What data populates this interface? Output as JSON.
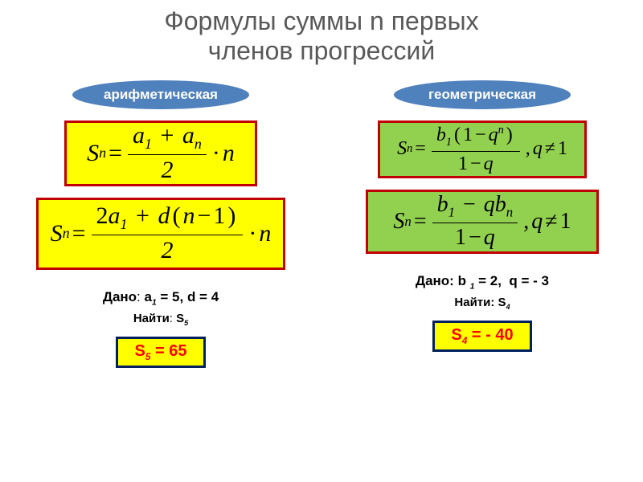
{
  "title_line1": "Формулы суммы n первых",
  "title_line2": "членов прогрессий",
  "colors": {
    "pill_bg": "#4f81bd",
    "pill_text": "#ffffff",
    "formula_border": "#c00000",
    "yellow_bg": "#ffff00",
    "green_bg": "#92d050",
    "answer_border": "#002060",
    "answer_text": "#ff0000",
    "title_color": "#595959"
  },
  "arithmetic": {
    "label": "арифметическая",
    "formula1": {
      "lhs_base": "S",
      "lhs_sub": "n",
      "num_a1_base": "a",
      "num_a1_sub": "1",
      "num_an_base": "a",
      "num_an_sub": "n",
      "den": "2",
      "tail_base": "n"
    },
    "formula2": {
      "lhs_base": "S",
      "lhs_sub": "n",
      "num_coef": "2",
      "num_a1_base": "a",
      "num_a1_sub": "1",
      "num_d": "d",
      "num_nminus": "n",
      "num_minus1": "1",
      "den": "2",
      "tail_base": "n"
    },
    "given_prefix": "Дано",
    "given_a1_base": "a",
    "given_a1_sub": "1",
    "given_a1_val": "5",
    "given_d_label": "d",
    "given_d_val": "4",
    "find_prefix": "Найти",
    "find_base": "S",
    "find_sub": "5",
    "answer_base": "S",
    "answer_sub": "5",
    "answer_val": "65"
  },
  "geometric": {
    "label": "геометрическая",
    "formula1": {
      "lhs_base": "S",
      "lhs_sub": "n",
      "num_b1_base": "b",
      "num_b1_sub": "1",
      "num_q": "q",
      "num_qexp": "n",
      "den_q": "q",
      "cond_q": "q",
      "cond_val": "1"
    },
    "formula2": {
      "lhs_base": "S",
      "lhs_sub": "n",
      "num_b1_base": "b",
      "num_b1_sub": "1",
      "num_q": "q",
      "num_bn_base": "b",
      "num_bn_sub": "n",
      "den_q": "q",
      "cond_q": "q",
      "cond_val": "1"
    },
    "given_prefix": "Дано:",
    "given_b1_base": "b",
    "given_b1_sub": "1",
    "given_b1_val": "2",
    "given_q_label": "q",
    "given_q_val": "- 3",
    "find_prefix": "Найти:",
    "find_base": "S",
    "find_sub": "4",
    "answer_base": "S",
    "answer_sub": "4",
    "answer_val": "- 40"
  }
}
